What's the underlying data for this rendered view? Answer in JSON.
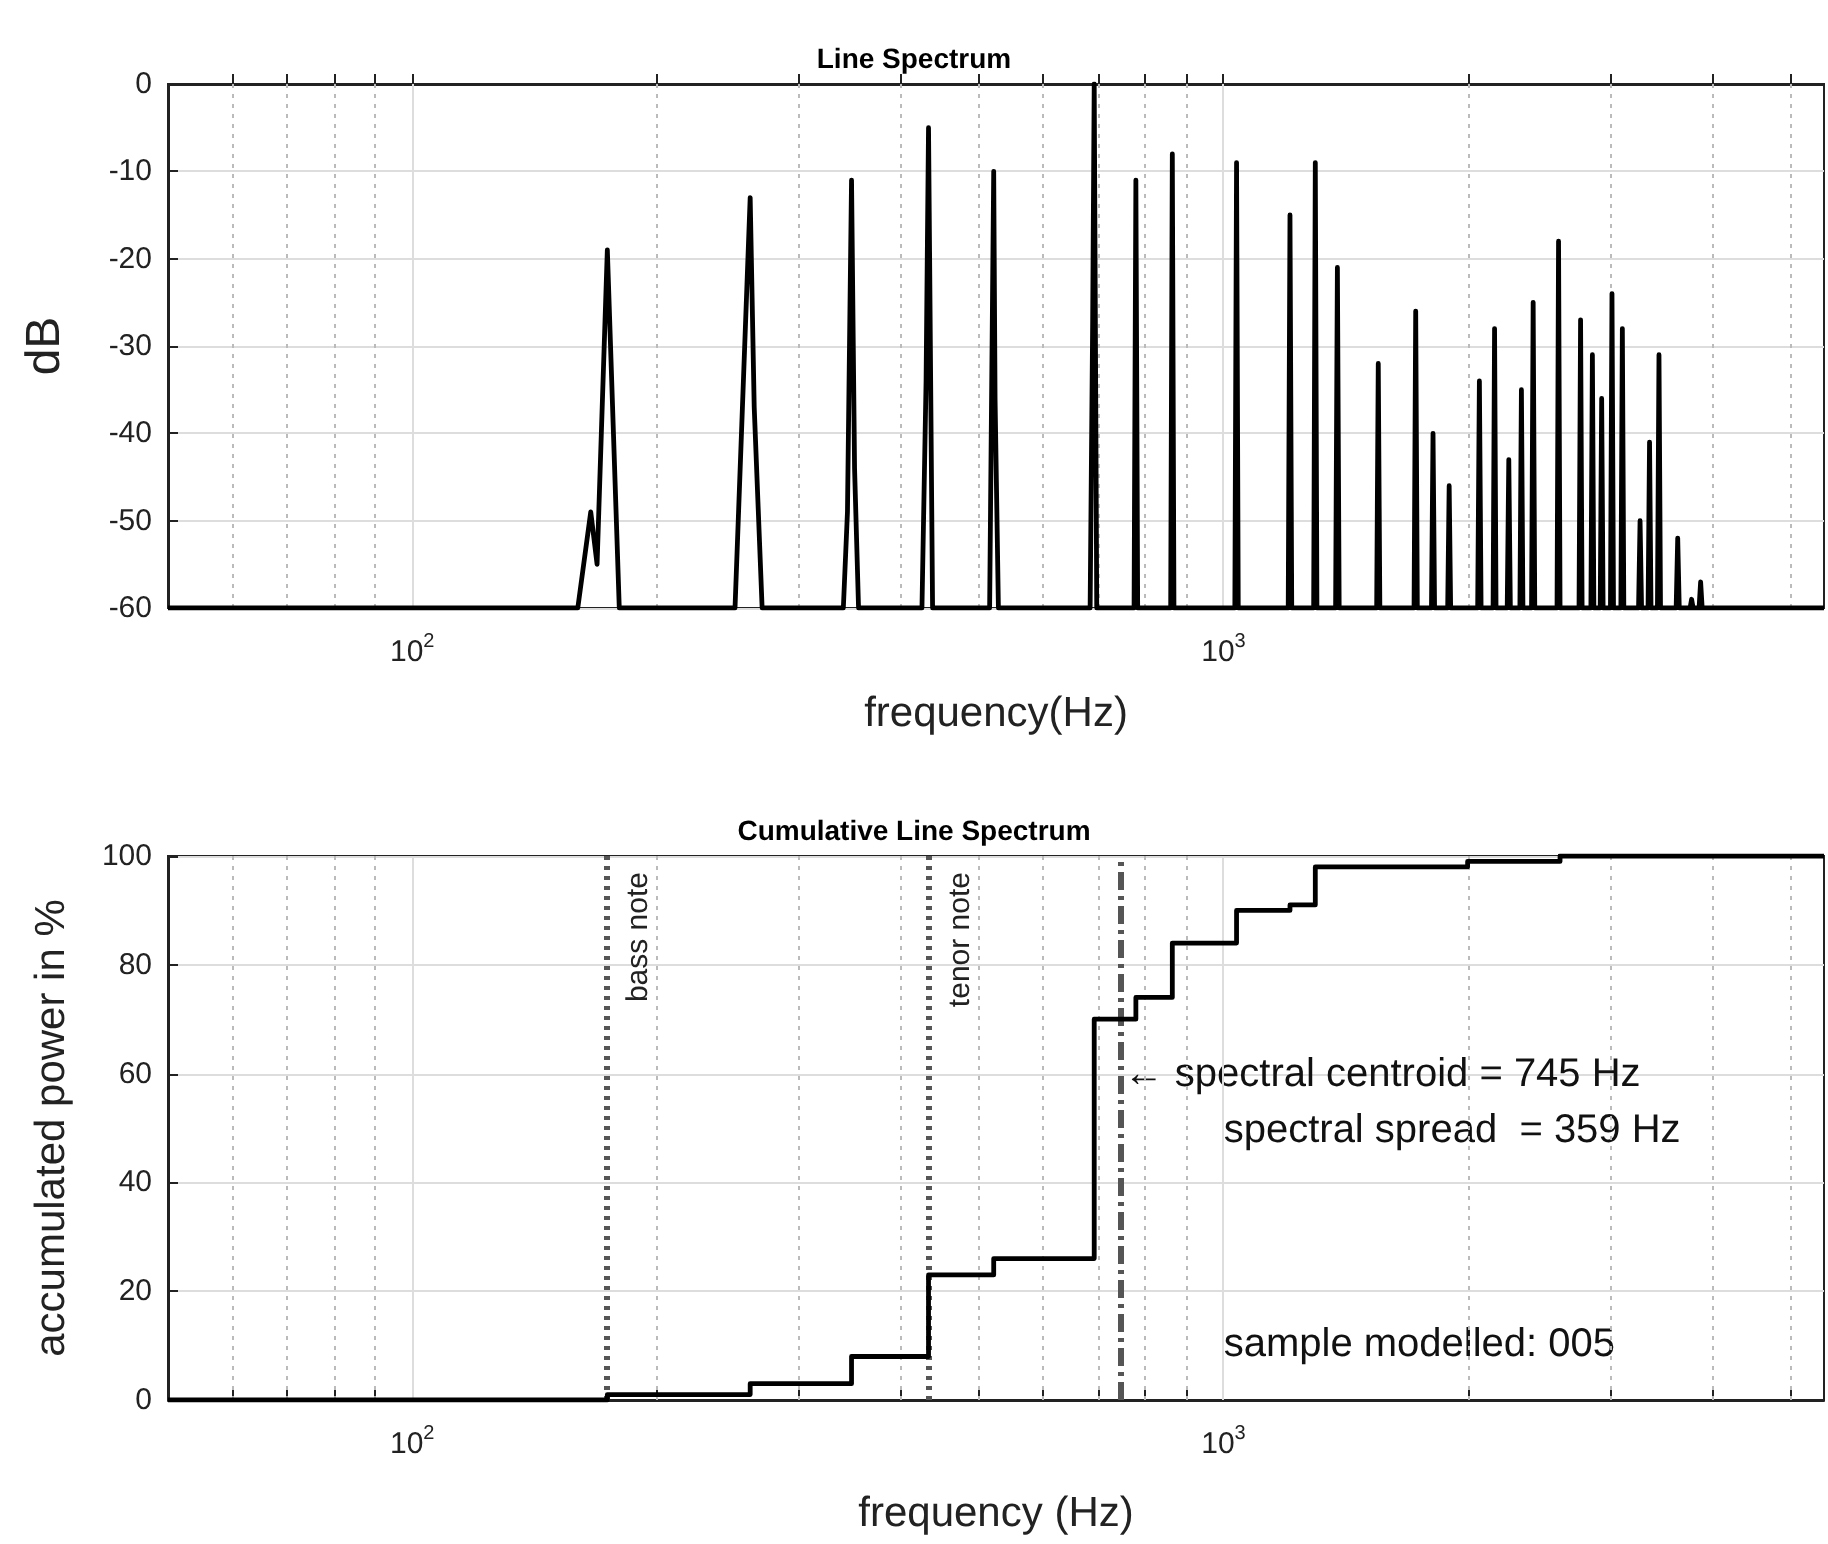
{
  "chart_data": [
    {
      "type": "line",
      "title": "Line Spectrum",
      "xlabel": "frequency(Hz)",
      "ylabel": "dB",
      "log": "x",
      "grid": true,
      "xlim": [
        50,
        5500
      ],
      "xticks": [
        {
          "value": 60,
          "label": null
        },
        {
          "value": 70,
          "label": null
        },
        {
          "value": 80,
          "label": null
        },
        {
          "value": 90,
          "label": null
        },
        {
          "value": 100,
          "label": "10$^{2}$"
        },
        {
          "value": 200,
          "label": null
        },
        {
          "value": 300,
          "label": null
        },
        {
          "value": 400,
          "label": null
        },
        {
          "value": 500,
          "label": null
        },
        {
          "value": 600,
          "label": null
        },
        {
          "value": 700,
          "label": null
        },
        {
          "value": 800,
          "label": null
        },
        {
          "value": 900,
          "label": null
        },
        {
          "value": 1000,
          "label": "10$^{3}$"
        },
        {
          "value": 2000,
          "label": null
        },
        {
          "value": 3000,
          "label": null
        },
        {
          "value": 4000,
          "label": null
        },
        {
          "value": 5000,
          "label": null
        }
      ],
      "ylim": [
        -60,
        0
      ],
      "yticks": [
        -60,
        -50,
        -40,
        -30,
        -20,
        -10,
        0
      ],
      "series": [
        {
          "color": "#000000",
          "x": [
            50,
            160,
            166,
            169,
            174,
            180,
            250,
            261,
            264,
            270,
            340,
            344,
            348,
            351,
            355,
            425,
            430,
            433,
            438,
            515,
            521,
            523,
            528,
            685,
            690,
            693,
            698,
            776,
            780,
            784,
            861,
            865,
            869,
            1033,
            1038,
            1043,
            1202,
            1208,
            1214,
            1292,
            1298,
            1304,
            1375,
            1382,
            1389,
            1545,
            1552,
            1559,
            1718,
            1726,
            1734,
            1805,
            1813,
            1821,
            1890,
            1898,
            1906,
            2058,
            2068,
            2078,
            2150,
            2159,
            2168,
            2238,
            2248,
            2258,
            2320,
            2330,
            2340,
            2398,
            2409,
            2420,
            2578,
            2589,
            2600,
            2744,
            2756,
            2768,
            2838,
            2850,
            2862,
            2914,
            2926,
            2938,
            3000,
            3013,
            3026,
            3090,
            3103,
            3116,
            3249,
            3263,
            3277,
            3338,
            3352,
            3366,
            3428,
            3443,
            3458,
            3615,
            3631,
            3647,
            3761,
            3777,
            3793,
            3858,
            3875,
            3892,
            5500
          ],
          "values": [
            -60,
            -60,
            -49,
            -55,
            -19,
            -60,
            -60,
            -13,
            -37,
            -60,
            -60,
            -49,
            -11,
            -44,
            -60,
            -60,
            -34,
            -5,
            -60,
            -60,
            -10,
            -36,
            -60,
            -60,
            -27,
            0,
            -60,
            -60,
            -11,
            -60,
            -60,
            -8,
            -60,
            -60,
            -9,
            -60,
            -60,
            -15,
            -60,
            -60,
            -9,
            -60,
            -60,
            -21,
            -60,
            -60,
            -32,
            -60,
            -60,
            -26,
            -60,
            -60,
            -40,
            -60,
            -60,
            -46,
            -60,
            -60,
            -34,
            -60,
            -60,
            -28,
            -60,
            -60,
            -43,
            -60,
            -60,
            -35,
            -60,
            -60,
            -25,
            -60,
            -60,
            -18,
            -60,
            -60,
            -27,
            -60,
            -60,
            -31,
            -60,
            -60,
            -36,
            -60,
            -60,
            -24,
            -60,
            -60,
            -28,
            -60,
            -60,
            -50,
            -60,
            -60,
            -41,
            -60,
            -60,
            -31,
            -60,
            -60,
            -52,
            -60,
            -60,
            -59,
            -60,
            -60,
            -57,
            -60,
            -60
          ]
        }
      ]
    },
    {
      "type": "step",
      "title": "Cumulative Line Spectrum",
      "xlabel": "frequency (Hz)",
      "ylabel": "accumulated power in %",
      "log": "x",
      "grid": true,
      "xlim": [
        50,
        5500
      ],
      "xticks": [
        {
          "value": 60,
          "label": null
        },
        {
          "value": 70,
          "label": null
        },
        {
          "value": 80,
          "label": null
        },
        {
          "value": 90,
          "label": null
        },
        {
          "value": 100,
          "label": "10$^{2}$"
        },
        {
          "value": 200,
          "label": null
        },
        {
          "value": 300,
          "label": null
        },
        {
          "value": 400,
          "label": null
        },
        {
          "value": 500,
          "label": null
        },
        {
          "value": 600,
          "label": null
        },
        {
          "value": 700,
          "label": null
        },
        {
          "value": 800,
          "label": null
        },
        {
          "value": 900,
          "label": null
        },
        {
          "value": 1000,
          "label": "10$^{3}$"
        },
        {
          "value": 2000,
          "label": null
        },
        {
          "value": 3000,
          "label": null
        },
        {
          "value": 4000,
          "label": null
        },
        {
          "value": 5000,
          "label": null
        }
      ],
      "ylim": [
        0,
        100
      ],
      "yticks": [
        0,
        20,
        40,
        60,
        80,
        100
      ],
      "series": [
        {
          "color": "#000000",
          "x": [
            50,
            174,
            261,
            348,
            433,
            521,
            693,
            780,
            865,
            1038,
            1208,
            1298,
            1550,
            2000,
            2600,
            5500
          ],
          "values": [
            0,
            1,
            3,
            8,
            23,
            26,
            70,
            74,
            84,
            90,
            91,
            98,
            98,
            99,
            100,
            100
          ]
        }
      ],
      "ref_lines": [
        {
          "axis": "x",
          "value": 174,
          "label": "bass note",
          "color": "#555555",
          "line_style": "dotted"
        },
        {
          "axis": "x",
          "value": 433,
          "label": "tenor note",
          "color": "#555555",
          "line_style": "dotted"
        },
        {
          "axis": "x",
          "value": 745,
          "label": null,
          "color": "#555555",
          "line_style": "dashed"
        }
      ],
      "annotations": [
        {
          "text": "← spectral centroid = 745 Hz",
          "x": 745,
          "y": 60
        },
        "spectral spread  = 359 Hz",
        "sample modelled: 005"
      ]
    }
  ]
}
